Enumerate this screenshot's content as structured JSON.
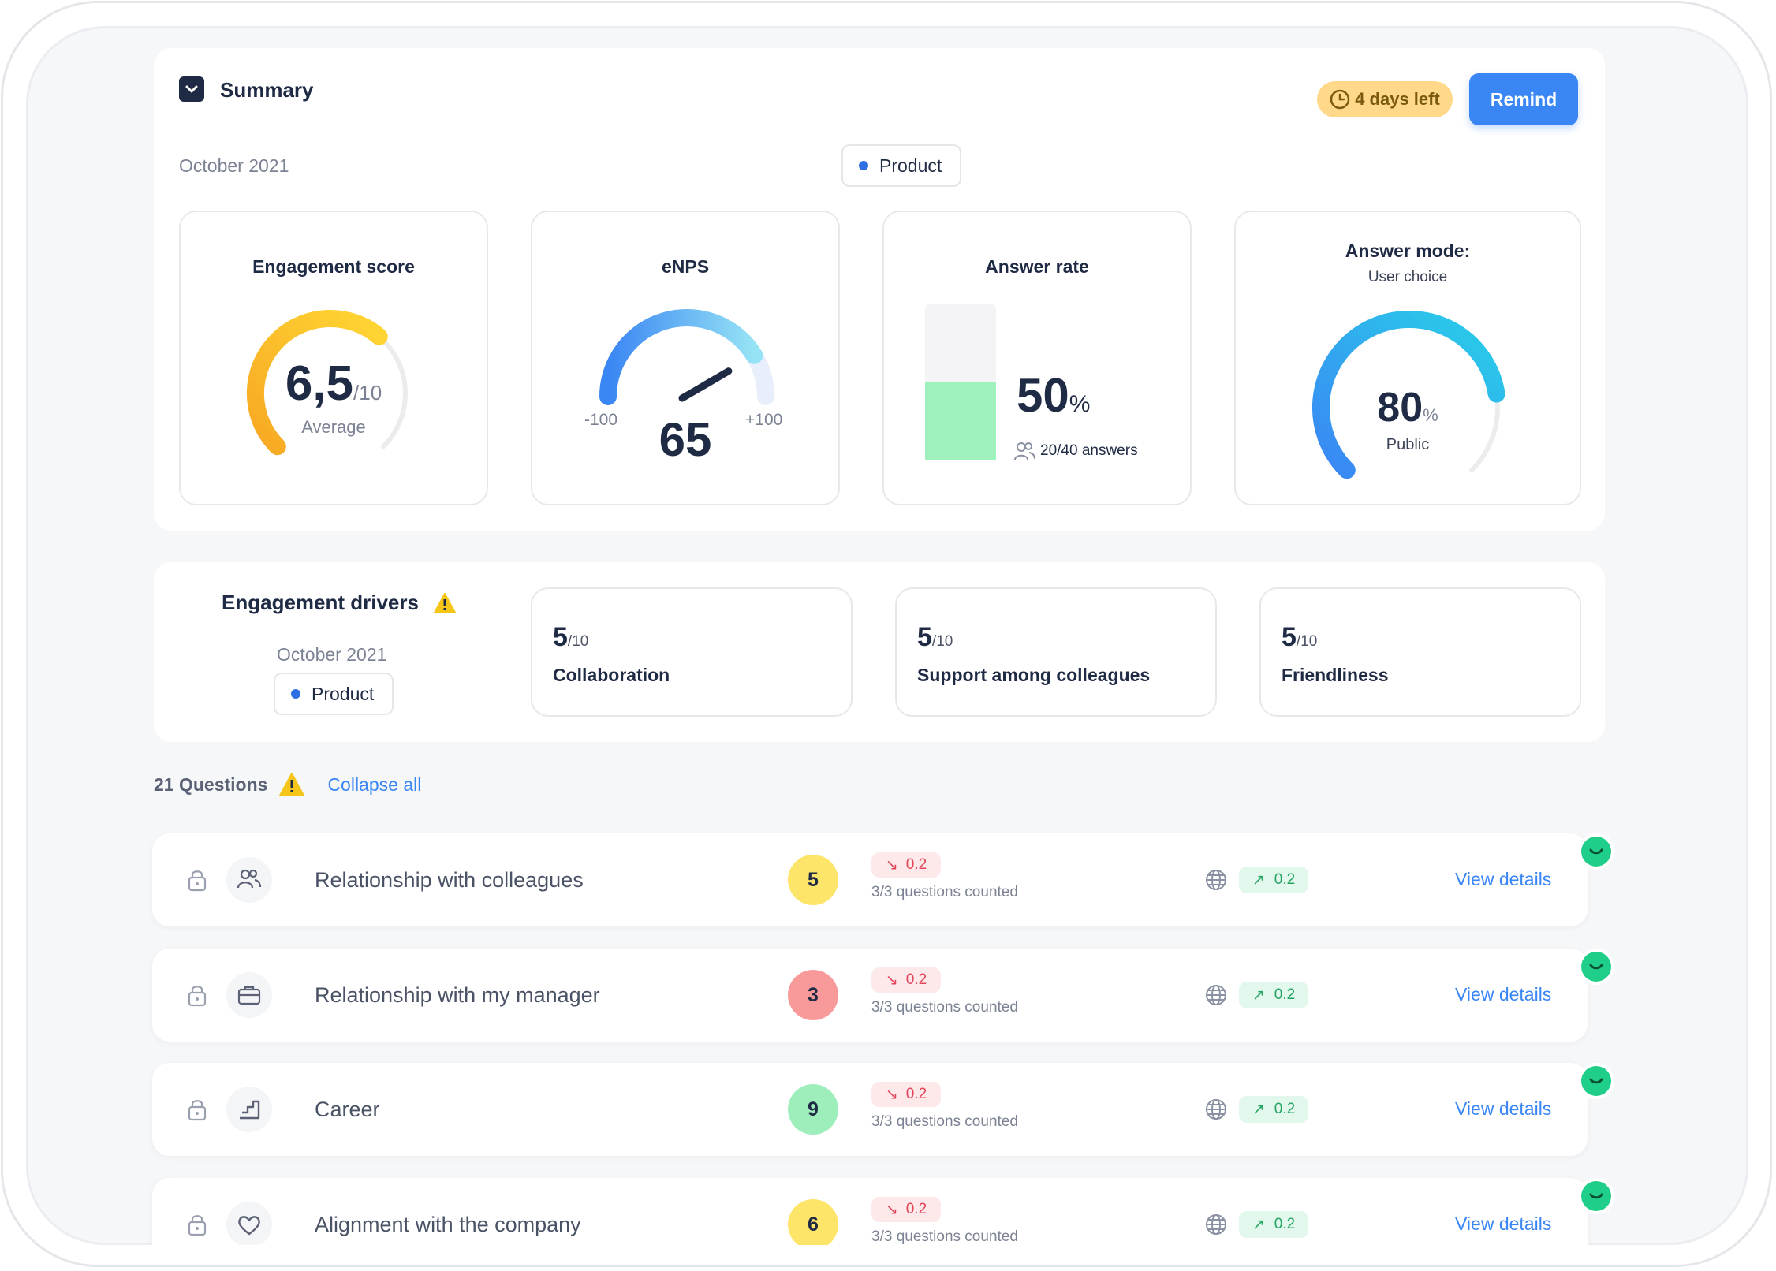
{
  "summary": {
    "title": "Summary",
    "days_left": "4 days left",
    "remind_label": "Remind",
    "period": "October 2021",
    "team_filter": "Product"
  },
  "metrics": {
    "engagement": {
      "title": "Engagement score",
      "value": "6,5",
      "unit": "/10",
      "caption": "Average",
      "fraction": 0.65
    },
    "enps": {
      "title": "eNPS",
      "min": "-100",
      "max": "+100",
      "value": "65",
      "fraction": 0.825
    },
    "answer_rate": {
      "title": "Answer rate",
      "value": "50",
      "unit": "%",
      "answers": "20/40 answers",
      "fraction": 0.5
    },
    "answer_mode": {
      "title": "Answer mode:",
      "subtitle": "User choice",
      "value": "80",
      "unit": "%",
      "caption": "Public",
      "fraction": 0.8
    }
  },
  "drivers": {
    "title": "Engagement drivers",
    "period": "October 2021",
    "team_filter": "Product",
    "items": [
      {
        "value": "5",
        "unit": "/10",
        "label": "Collaboration"
      },
      {
        "value": "5",
        "unit": "/10",
        "label": "Support among colleagues"
      },
      {
        "value": "5",
        "unit": "/10",
        "label": "Friendliness"
      }
    ]
  },
  "questions": {
    "count_label": "21 Questions",
    "collapse_label": "Collapse all",
    "rows": [
      {
        "title": "Relationship with colleagues",
        "icon": "people-icon",
        "score": "5",
        "score_color": "#fde56a",
        "delta_down": "0.2",
        "counted": "3/3 questions counted",
        "delta_up": "0.2",
        "link": "View details"
      },
      {
        "title": "Relationship with my manager",
        "icon": "briefcase-icon",
        "score": "3",
        "score_color": "#f99a9a",
        "delta_down": "0.2",
        "counted": "3/3 questions counted",
        "delta_up": "0.2",
        "link": "View details"
      },
      {
        "title": "Career",
        "icon": "stairs-icon",
        "score": "9",
        "score_color": "#9eeebb",
        "delta_down": "0.2",
        "counted": "3/3 questions counted",
        "delta_up": "0.2",
        "link": "View details"
      },
      {
        "title": "Alignment with the company",
        "icon": "heart-icon",
        "score": "6",
        "score_color": "#fde56a",
        "delta_down": "0.2",
        "counted": "3/3 questions counted",
        "delta_up": "0.2",
        "link": "View details"
      }
    ]
  },
  "colors": {
    "accent": "#3a86f4",
    "warning": "#f5c518",
    "success": "#1fcf89",
    "answer_bar": "#9ef0bd"
  }
}
